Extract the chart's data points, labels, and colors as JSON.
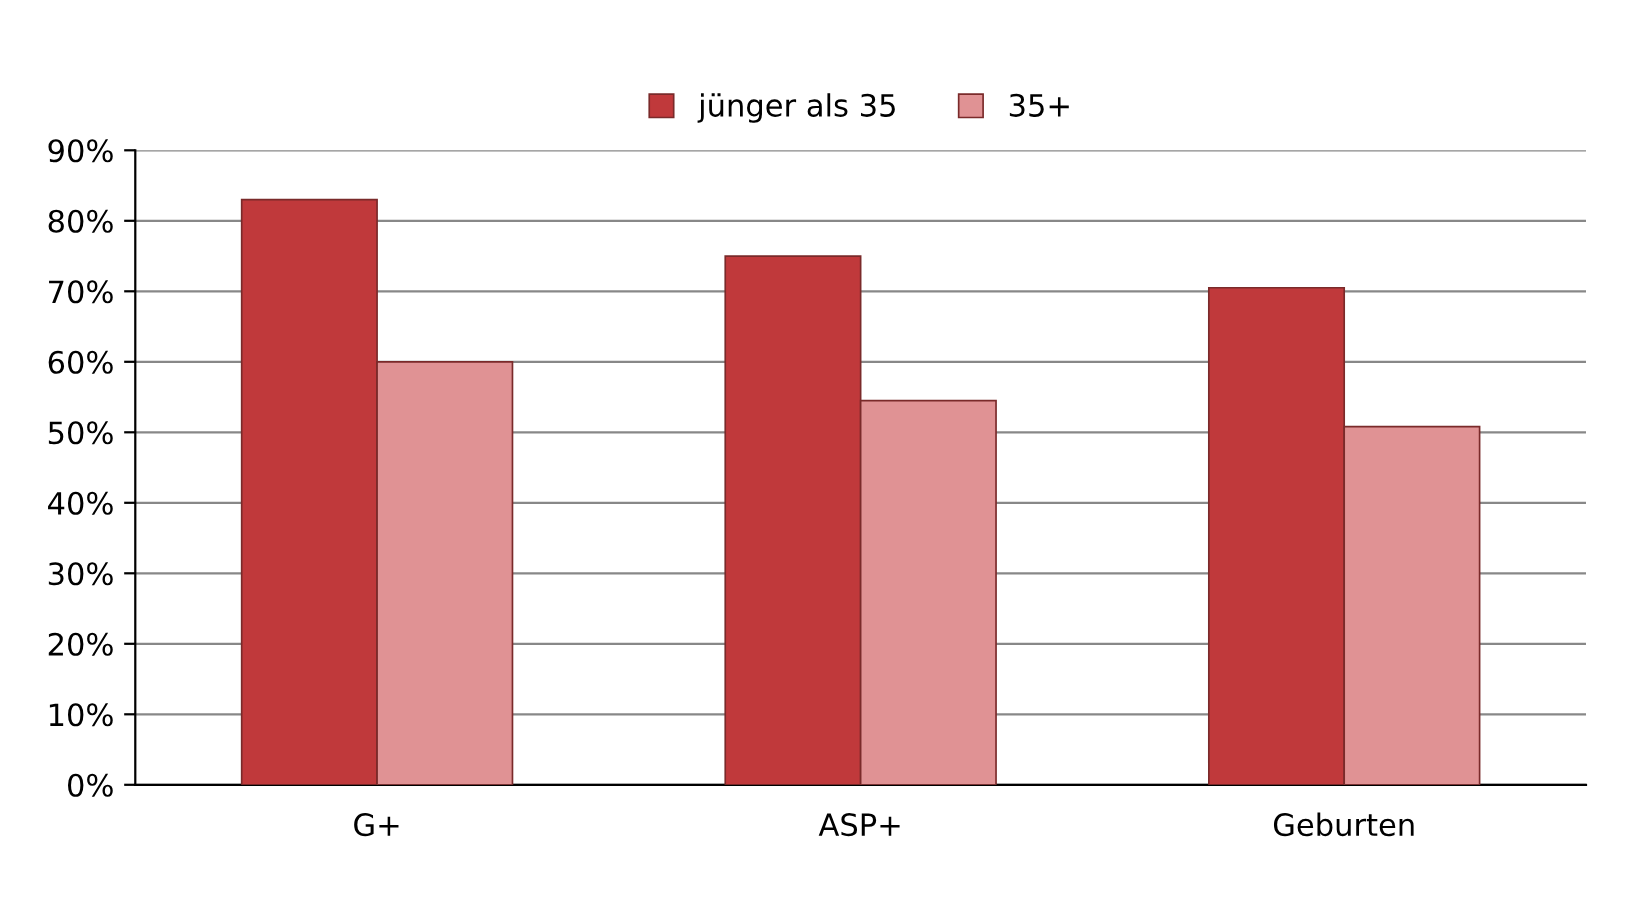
{
  "chart_data": {
    "type": "bar",
    "categories": [
      "G+",
      "ASP+",
      "Geburten"
    ],
    "series": [
      {
        "name": "jünger als 35",
        "color": "#c0393b",
        "values": [
          83,
          75,
          70.5
        ]
      },
      {
        "name": "35+",
        "color": "#e09294",
        "values": [
          60,
          54.5,
          50.8
        ]
      }
    ],
    "ylim": [
      0,
      90
    ],
    "yticks": [
      {
        "value": 0,
        "label": "0%"
      },
      {
        "value": 10,
        "label": "10%"
      },
      {
        "value": 20,
        "label": "20%"
      },
      {
        "value": 30,
        "label": "30%"
      },
      {
        "value": 40,
        "label": "40%"
      },
      {
        "value": 50,
        "label": "50%"
      },
      {
        "value": 60,
        "label": "60%"
      },
      {
        "value": 70,
        "label": "70%"
      },
      {
        "value": 80,
        "label": "80%"
      },
      {
        "value": 90,
        "label": "90%"
      }
    ],
    "grid": "y",
    "legend": "top"
  }
}
